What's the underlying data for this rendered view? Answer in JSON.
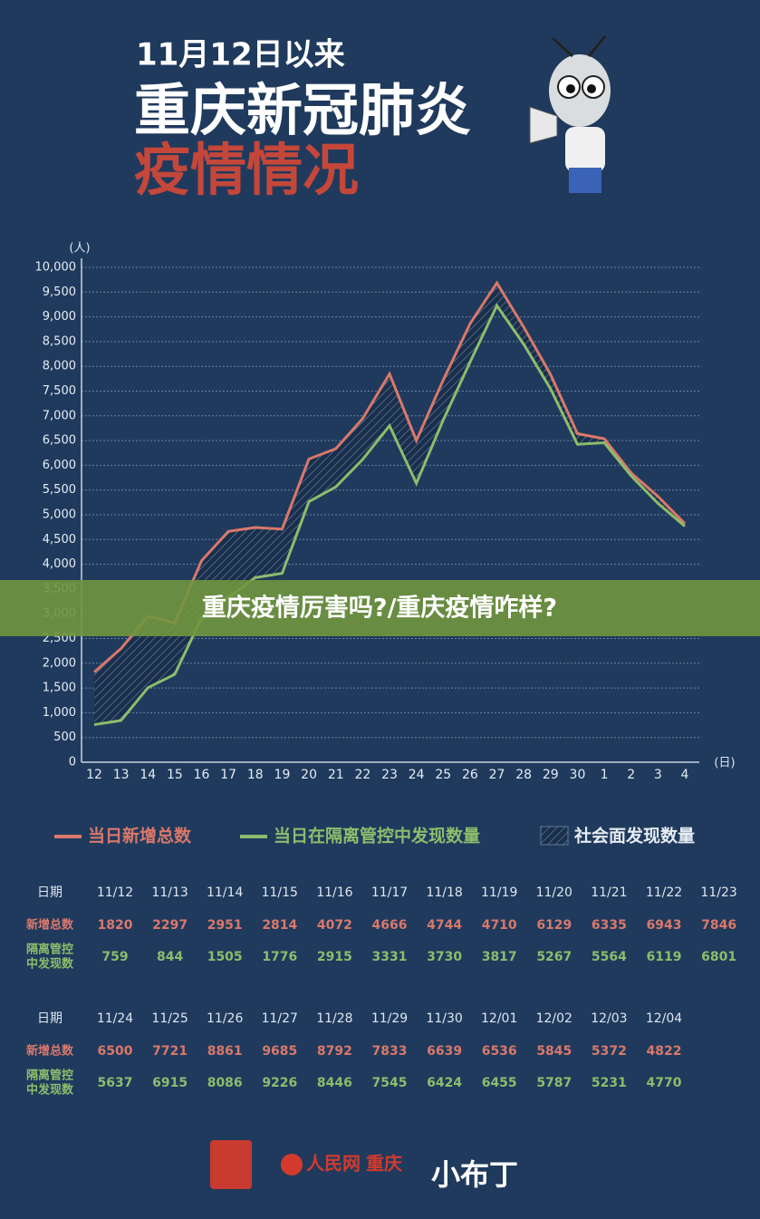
{
  "chart_data": {
    "type": "line",
    "subtitle": "11月12日以来",
    "title": "重庆新冠肺炎",
    "title2": "疫情情况",
    "y_label": "(人)",
    "x_label": "(日)",
    "categories": [
      "12",
      "13",
      "14",
      "15",
      "16",
      "17",
      "18",
      "19",
      "20",
      "21",
      "22",
      "23",
      "24",
      "25",
      "26",
      "27",
      "28",
      "29",
      "30",
      "1",
      "2",
      "3",
      "4"
    ],
    "series": [
      {
        "name": "当日新增总数",
        "color": "#d9786b",
        "values": [
          1820,
          2297,
          2951,
          2814,
          4072,
          4666,
          4744,
          4710,
          6129,
          6335,
          6943,
          7846,
          6500,
          7721,
          8861,
          9685,
          8792,
          7833,
          6639,
          6536,
          5845,
          5372,
          4822
        ]
      },
      {
        "name": "当日在隔离管控中发现数量",
        "color": "#8cbd6c",
        "values": [
          759,
          844,
          1505,
          1776,
          2915,
          3331,
          3730,
          3817,
          5267,
          5564,
          6119,
          6801,
          5637,
          6915,
          8086,
          9226,
          8446,
          7545,
          6424,
          6455,
          5787,
          5231,
          4770
        ]
      }
    ],
    "area_legend": "社会面发现数量",
    "ylim": [
      0,
      10000
    ],
    "yticks": [
      0,
      500,
      {
        "value": 1000,
        "label": "1,000"
      },
      {
        "value": 1500,
        "label": "1,500"
      },
      {
        "value": 2000,
        "label": "2,000"
      },
      {
        "value": 2500,
        "label": "2,500"
      },
      {
        "value": 3000,
        "label": "3,000"
      },
      {
        "value": 3500,
        "label": "3,500"
      },
      {
        "value": 4000,
        "label": "4,000"
      },
      {
        "value": 4500,
        "label": "4,500"
      },
      {
        "value": 5000,
        "label": "5,000"
      },
      {
        "value": 5500,
        "label": "5,500"
      },
      {
        "value": 6000,
        "label": "6,000"
      },
      {
        "value": 6500,
        "label": "6,500"
      },
      {
        "value": 7000,
        "label": "7,000"
      },
      {
        "value": 7500,
        "label": "7,500"
      },
      {
        "value": 8000,
        "label": "8,000"
      },
      {
        "value": 8500,
        "label": "8,500"
      },
      {
        "value": 9000,
        "label": "9,000"
      },
      {
        "value": 9500,
        "label": "9,500"
      },
      {
        "value": 10000,
        "label": "10,000"
      }
    ],
    "grid": true,
    "banner": "重庆疫情厉害吗?/重庆疫情咋样?",
    "table": {
      "row_labels": [
        "日期",
        "新增总数",
        [
          "隔离管控",
          "中发现数"
        ]
      ],
      "dates": [
        "11/12",
        "11/13",
        "11/14",
        "11/15",
        "11/16",
        "11/17",
        "11/18",
        "11/19",
        "11/20",
        "11/21",
        "11/22",
        "11/23",
        "11/24",
        "11/25",
        "11/26",
        "11/27",
        "11/28",
        "11/29",
        "11/30",
        "12/01",
        "12/02",
        "12/03",
        "12/04"
      ]
    },
    "footer": [
      "人民网",
      "重庆",
      "小布丁"
    ]
  }
}
